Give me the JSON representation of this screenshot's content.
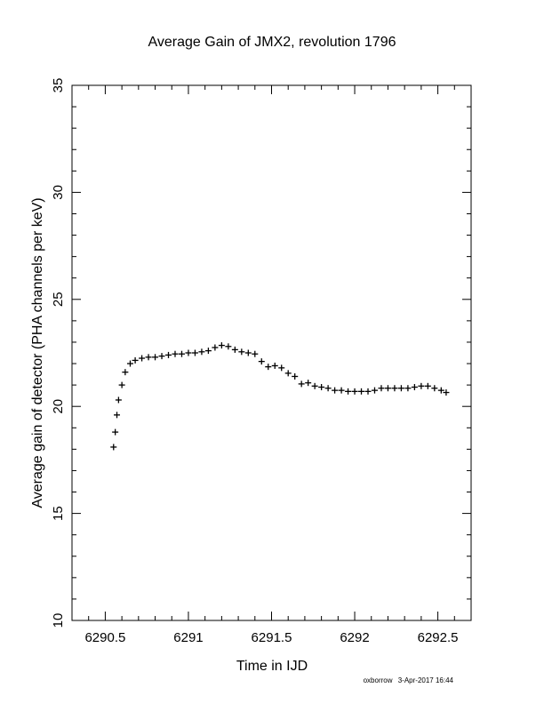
{
  "chart_data": {
    "type": "scatter",
    "title": "Average Gain of JMX2, revolution 1796",
    "xlabel": "Time in IJD",
    "ylabel": "Average gain of detector (PHA channels per keV)",
    "xlim": [
      6290.3,
      6292.7
    ],
    "ylim": [
      10,
      35
    ],
    "x_ticks": [
      6290.5,
      6291,
      6291.5,
      6292,
      6292.5
    ],
    "x_tick_labels": [
      "6290.5",
      "6291",
      "6291.5",
      "6292",
      "6292.5"
    ],
    "y_ticks": [
      10,
      15,
      20,
      25,
      30,
      35
    ],
    "y_tick_labels": [
      "10",
      "15",
      "20",
      "25",
      "30",
      "35"
    ],
    "marker": "plus",
    "grid": false,
    "series": [
      {
        "x": [
          6290.55,
          6290.56,
          6290.57,
          6290.58,
          6290.6,
          6290.62,
          6290.65,
          6290.68,
          6290.72,
          6290.76,
          6290.8,
          6290.84,
          6290.88,
          6290.92,
          6290.96,
          6291.0,
          6291.04,
          6291.08,
          6291.12,
          6291.16,
          6291.2,
          6291.24,
          6291.28,
          6291.32,
          6291.36,
          6291.4,
          6291.44,
          6291.48,
          6291.52,
          6291.56,
          6291.6,
          6291.64,
          6291.68,
          6291.72,
          6291.76,
          6291.8,
          6291.84,
          6291.88,
          6291.92,
          6291.96,
          6292.0,
          6292.04,
          6292.08,
          6292.12,
          6292.16,
          6292.2,
          6292.24,
          6292.28,
          6292.32,
          6292.36,
          6292.4,
          6292.44,
          6292.48,
          6292.52,
          6292.55
        ],
        "y": [
          18.1,
          18.8,
          19.6,
          20.3,
          21.0,
          21.6,
          22.0,
          22.15,
          22.25,
          22.3,
          22.3,
          22.35,
          22.4,
          22.45,
          22.45,
          22.5,
          22.5,
          22.55,
          22.6,
          22.75,
          22.85,
          22.8,
          22.65,
          22.55,
          22.5,
          22.45,
          22.1,
          21.85,
          21.9,
          21.8,
          21.55,
          21.4,
          21.05,
          21.1,
          20.95,
          20.9,
          20.85,
          20.75,
          20.75,
          20.7,
          20.7,
          20.7,
          20.7,
          20.75,
          20.85,
          20.85,
          20.85,
          20.85,
          20.85,
          20.9,
          20.95,
          20.95,
          20.85,
          20.75,
          20.65
        ]
      }
    ]
  },
  "footer": {
    "credit": "oxborrow",
    "date": "3-Apr-2017 16:44"
  }
}
